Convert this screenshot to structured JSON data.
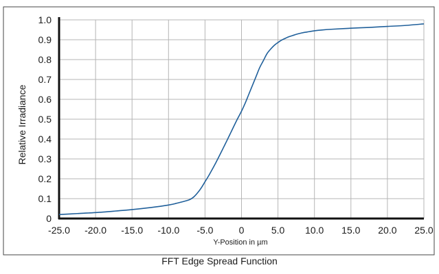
{
  "chart_data": {
    "type": "line",
    "title": "",
    "caption": "FFT Edge Spread Function",
    "xlabel": "Y-Position in µm",
    "ylabel": "Relative Irradiance",
    "xlim": [
      -25,
      25
    ],
    "ylim": [
      0,
      1.0
    ],
    "grid": true,
    "x_ticks": [
      "-25.0",
      "-20.0",
      "-15.0",
      "-10.0",
      "-5.0",
      "0",
      "5.0",
      "10.0",
      "15.0",
      "20.0",
      "25.0"
    ],
    "y_ticks": [
      "0",
      "0.1",
      "0.2",
      "0.3",
      "0.4",
      "0.5",
      "0.6",
      "0.7",
      "0.8",
      "0.9",
      "1.0"
    ],
    "line_color": "#1f5f9a",
    "series": [
      {
        "x": [
          -25,
          -22.5,
          -20,
          -17.5,
          -15,
          -12.5,
          -10,
          -8.75,
          -7.5,
          -7,
          -6.5,
          -6,
          -5.5,
          -5,
          -4.5,
          -4,
          -3.5,
          -3,
          -2.5,
          -2,
          -1.5,
          -1,
          -0.5,
          0,
          0.5,
          1,
          1.5,
          2,
          2.5,
          3,
          3.5,
          4,
          4.5,
          5,
          5.5,
          6,
          6.5,
          7,
          7.5,
          8,
          8.5,
          9,
          10,
          11,
          12.5,
          15,
          17.5,
          20,
          22.5,
          25
        ],
        "y": [
          0.02,
          0.025,
          0.03,
          0.037,
          0.045,
          0.055,
          0.068,
          0.078,
          0.09,
          0.097,
          0.11,
          0.13,
          0.155,
          0.185,
          0.215,
          0.248,
          0.282,
          0.318,
          0.355,
          0.392,
          0.43,
          0.468,
          0.505,
          0.54,
          0.58,
          0.625,
          0.67,
          0.715,
          0.76,
          0.795,
          0.83,
          0.853,
          0.872,
          0.886,
          0.898,
          0.907,
          0.915,
          0.921,
          0.927,
          0.932,
          0.936,
          0.939,
          0.945,
          0.949,
          0.953,
          0.958,
          0.962,
          0.967,
          0.972,
          0.98
        ]
      }
    ]
  }
}
